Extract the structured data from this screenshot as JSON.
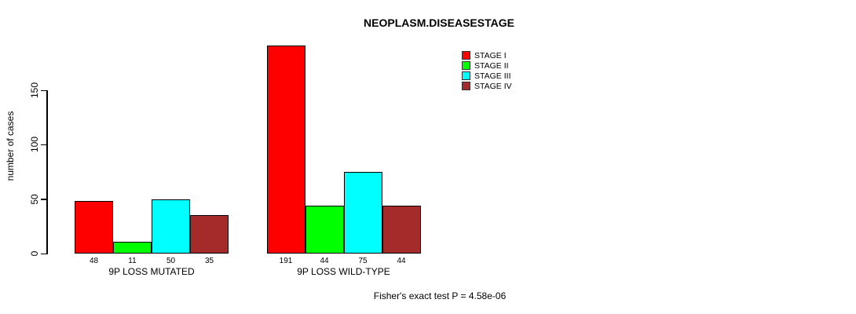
{
  "chart_data": {
    "type": "bar",
    "title": "NEOPLASM.DISEASESTAGE",
    "ylabel": "number of cases",
    "xlabel": "",
    "yticks": [
      0,
      50,
      100,
      150
    ],
    "ylim": [
      0,
      199
    ],
    "grid": false,
    "legend_position": "top-right",
    "bar_value_labels": true,
    "categories": [
      "9P LOSS MUTATED",
      "9P LOSS WILD-TYPE"
    ],
    "series": [
      {
        "name": "STAGE I",
        "color": "#FF0000",
        "values": [
          48,
          191
        ]
      },
      {
        "name": "STAGE II",
        "color": "#00FF00",
        "values": [
          11,
          44
        ]
      },
      {
        "name": "STAGE III",
        "color": "#00FFFF",
        "values": [
          50,
          75
        ]
      },
      {
        "name": "STAGE IV",
        "color": "#A52A2A",
        "values": [
          35,
          44
        ]
      }
    ],
    "caption": "Fisher's exact test P = 4.58e-06"
  }
}
